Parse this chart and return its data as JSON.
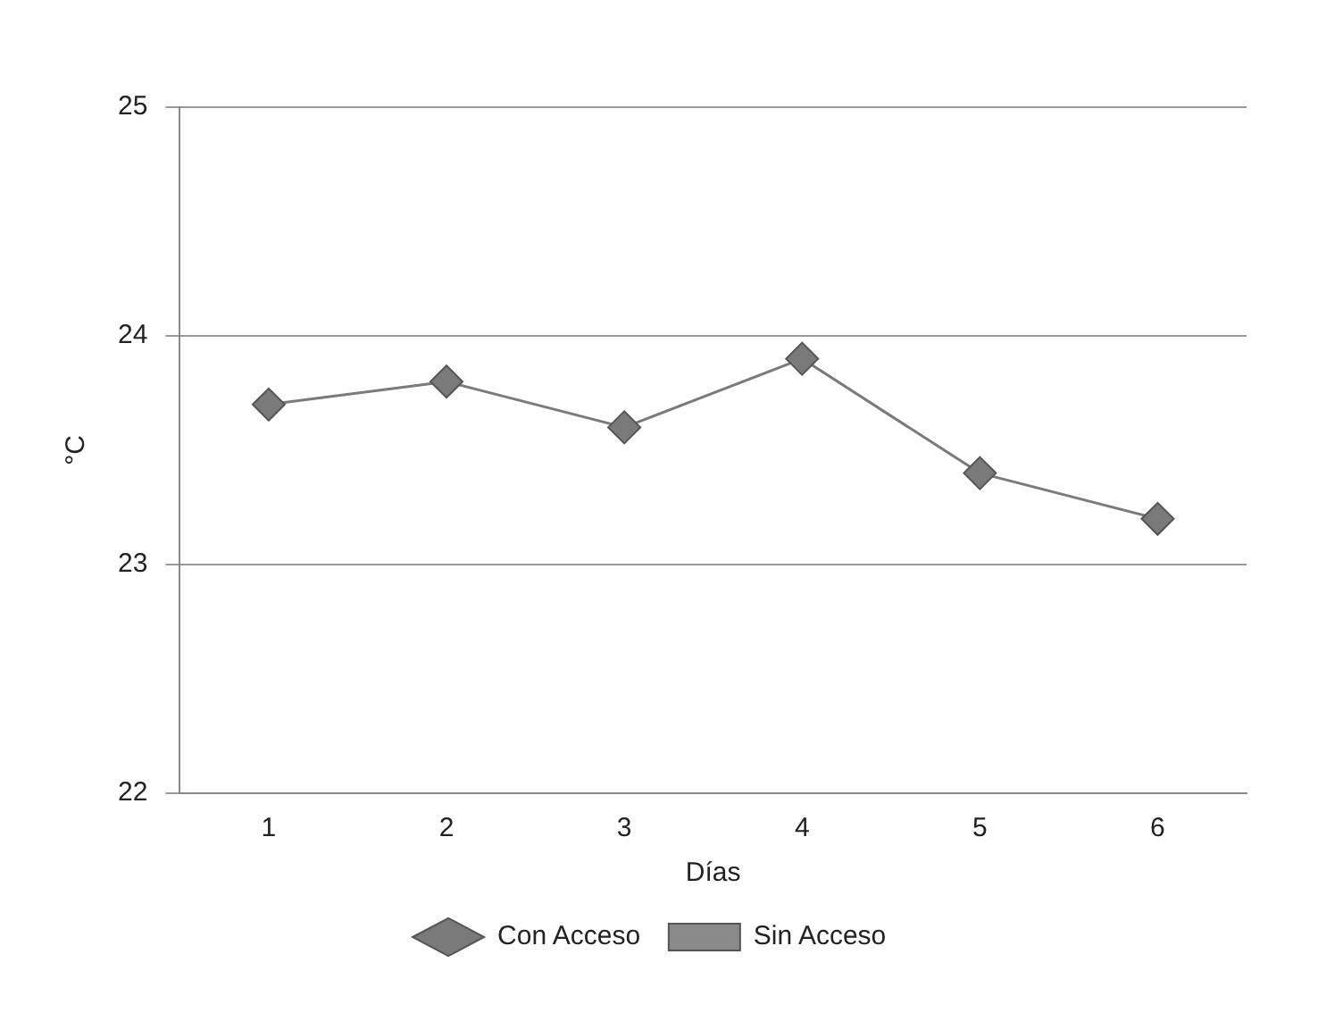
{
  "chart_data": {
    "type": "line",
    "xlabel": "Días",
    "ylabel": "°C",
    "categories": [
      "1",
      "2",
      "3",
      "4",
      "5",
      "6"
    ],
    "series": [
      {
        "name": "Con Acceso",
        "color": "#7a7a7a",
        "marker": "diamond",
        "values": [
          23.7,
          23.8,
          23.6,
          23.9,
          23.4,
          23.2
        ]
      },
      {
        "name": "Sin Acceso",
        "color": "#8a8a8a",
        "marker": "square",
        "values": [
          null,
          null,
          null,
          null,
          null,
          null
        ]
      }
    ],
    "ylim": [
      22,
      25
    ],
    "yticks": [
      22,
      23,
      24,
      25
    ],
    "grid": "y",
    "legend": "bottom",
    "line_style": "solid"
  }
}
